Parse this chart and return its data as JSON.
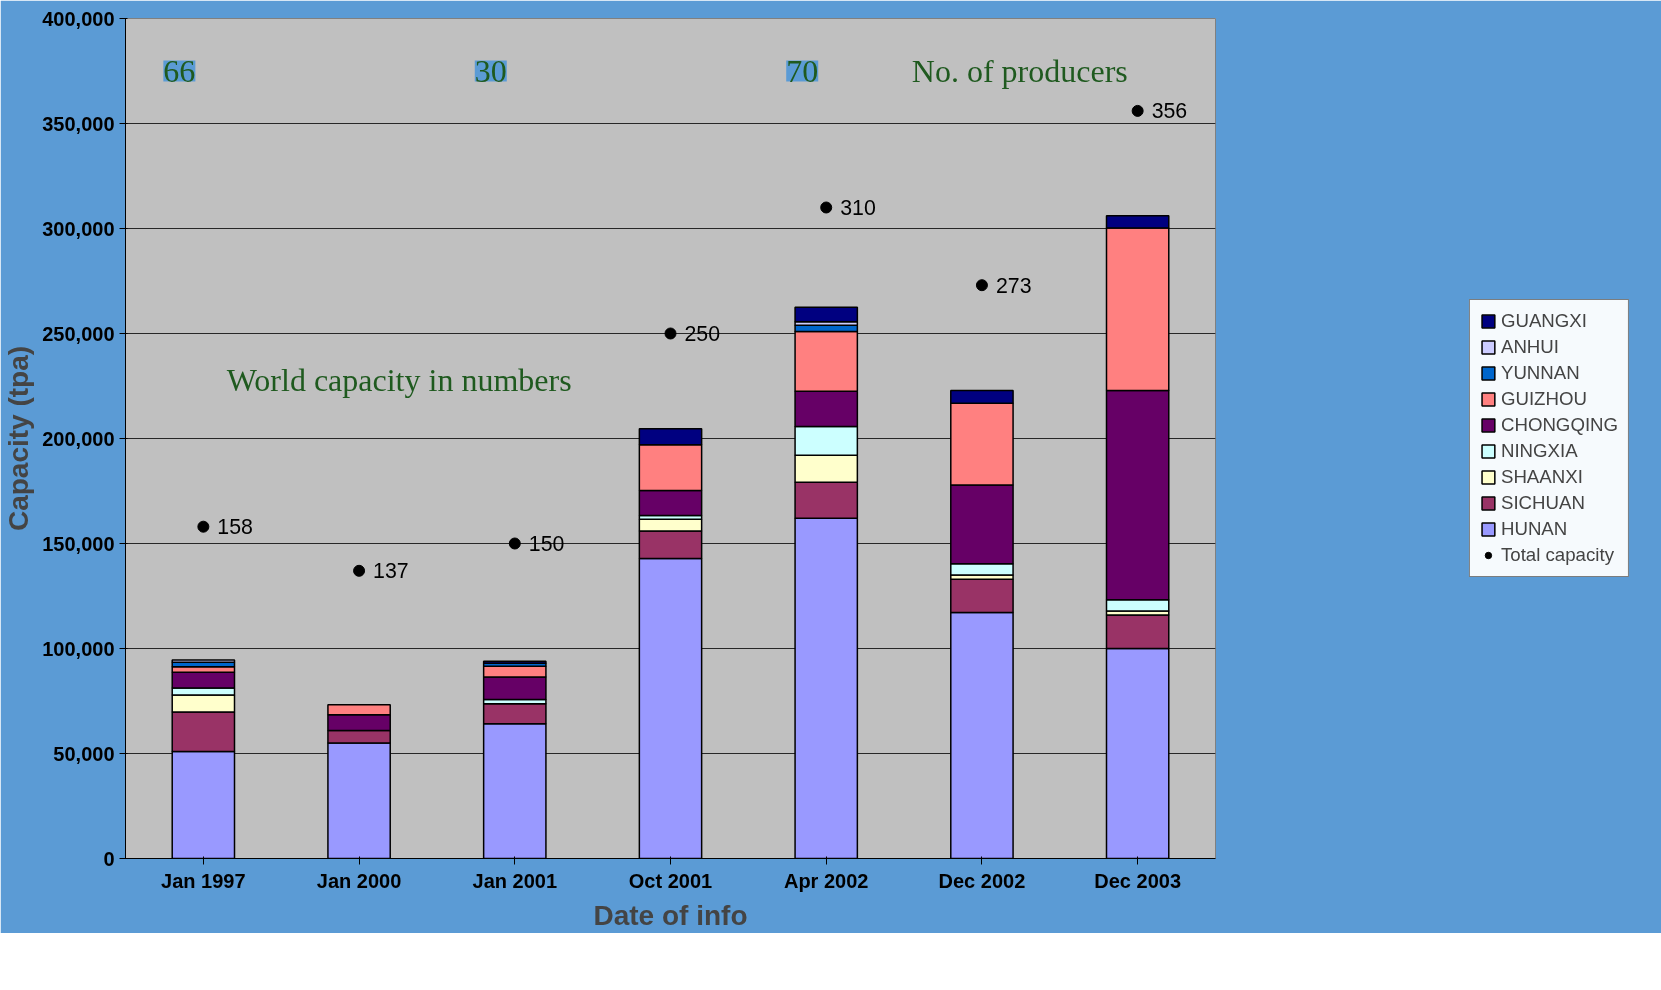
{
  "chart_data": {
    "type": "bar",
    "stacked": true,
    "xlabel": "Date of info",
    "ylabel": "Capacity (tpa)",
    "categories": [
      "Jan 1997",
      "Jan 2000",
      "Jan 2001",
      "Oct 2001",
      "Apr 2002",
      "Dec 2002",
      "Dec 2003"
    ],
    "series": [
      {
        "name": "HUNAN",
        "color": "#9999ff",
        "values": [
          51000,
          55000,
          64200,
          142800,
          162000,
          117100,
          100000
        ]
      },
      {
        "name": "SICHUAN",
        "color": "#993366",
        "values": [
          18800,
          6000,
          9500,
          13100,
          17200,
          15900,
          15900
        ]
      },
      {
        "name": "SHAANXI",
        "color": "#ffffcc",
        "values": [
          8000,
          null,
          null,
          5600,
          12800,
          2000,
          2000
        ]
      },
      {
        "name": "NINGXIA",
        "color": "#ccffff",
        "values": [
          3400,
          null,
          2000,
          1800,
          13700,
          5300,
          5300
        ]
      },
      {
        "name": "CHONGQING",
        "color": "#660066",
        "values": [
          7500,
          7500,
          10700,
          11900,
          16800,
          37600,
          99700
        ]
      },
      {
        "name": "GUIZHOU",
        "color": "#ff8080",
        "values": [
          2600,
          4700,
          5200,
          21800,
          28500,
          38900,
          77300
        ]
      },
      {
        "name": "YUNNAN",
        "color": "#0066cc",
        "values": [
          2100,
          null,
          1400,
          null,
          2900,
          null,
          null
        ]
      },
      {
        "name": "ANHUI",
        "color": "#ccccff",
        "values": [
          1100,
          null,
          null,
          null,
          1700,
          null,
          null
        ]
      },
      {
        "name": "GUANGXI",
        "color": "#000080",
        "values": [
          null,
          null,
          900,
          7600,
          6900,
          6100,
          5900
        ]
      },
      {
        "name": "Total capacity",
        "type": "scatter",
        "axis": "y2",
        "marker": "circle",
        "color": "#000000",
        "values": [
          158,
          137,
          150,
          250,
          310,
          273,
          356
        ],
        "value_labels": [
          "158",
          "137",
          "150",
          "250",
          "310",
          "273",
          "356"
        ]
      }
    ],
    "ylim": [
      0,
      400000
    ],
    "y2lim": [
      0,
      400
    ],
    "yticks": [
      {
        "value": 0,
        "label": "0"
      },
      {
        "value": 50000,
        "label": "50,000"
      },
      {
        "value": 100000,
        "label": "100,000"
      },
      {
        "value": 150000,
        "label": "150,000"
      },
      {
        "value": 200000,
        "label": "200,000"
      },
      {
        "value": 250000,
        "label": "250,000"
      },
      {
        "value": 300000,
        "label": "300,000"
      },
      {
        "value": 350000,
        "label": "350,000"
      },
      {
        "value": 400000,
        "label": "400,000"
      }
    ],
    "grid": "y",
    "legend": "right",
    "annotations": [
      "66",
      "30",
      "70",
      "No. of producers",
      "World capacity in numbers"
    ]
  }
}
